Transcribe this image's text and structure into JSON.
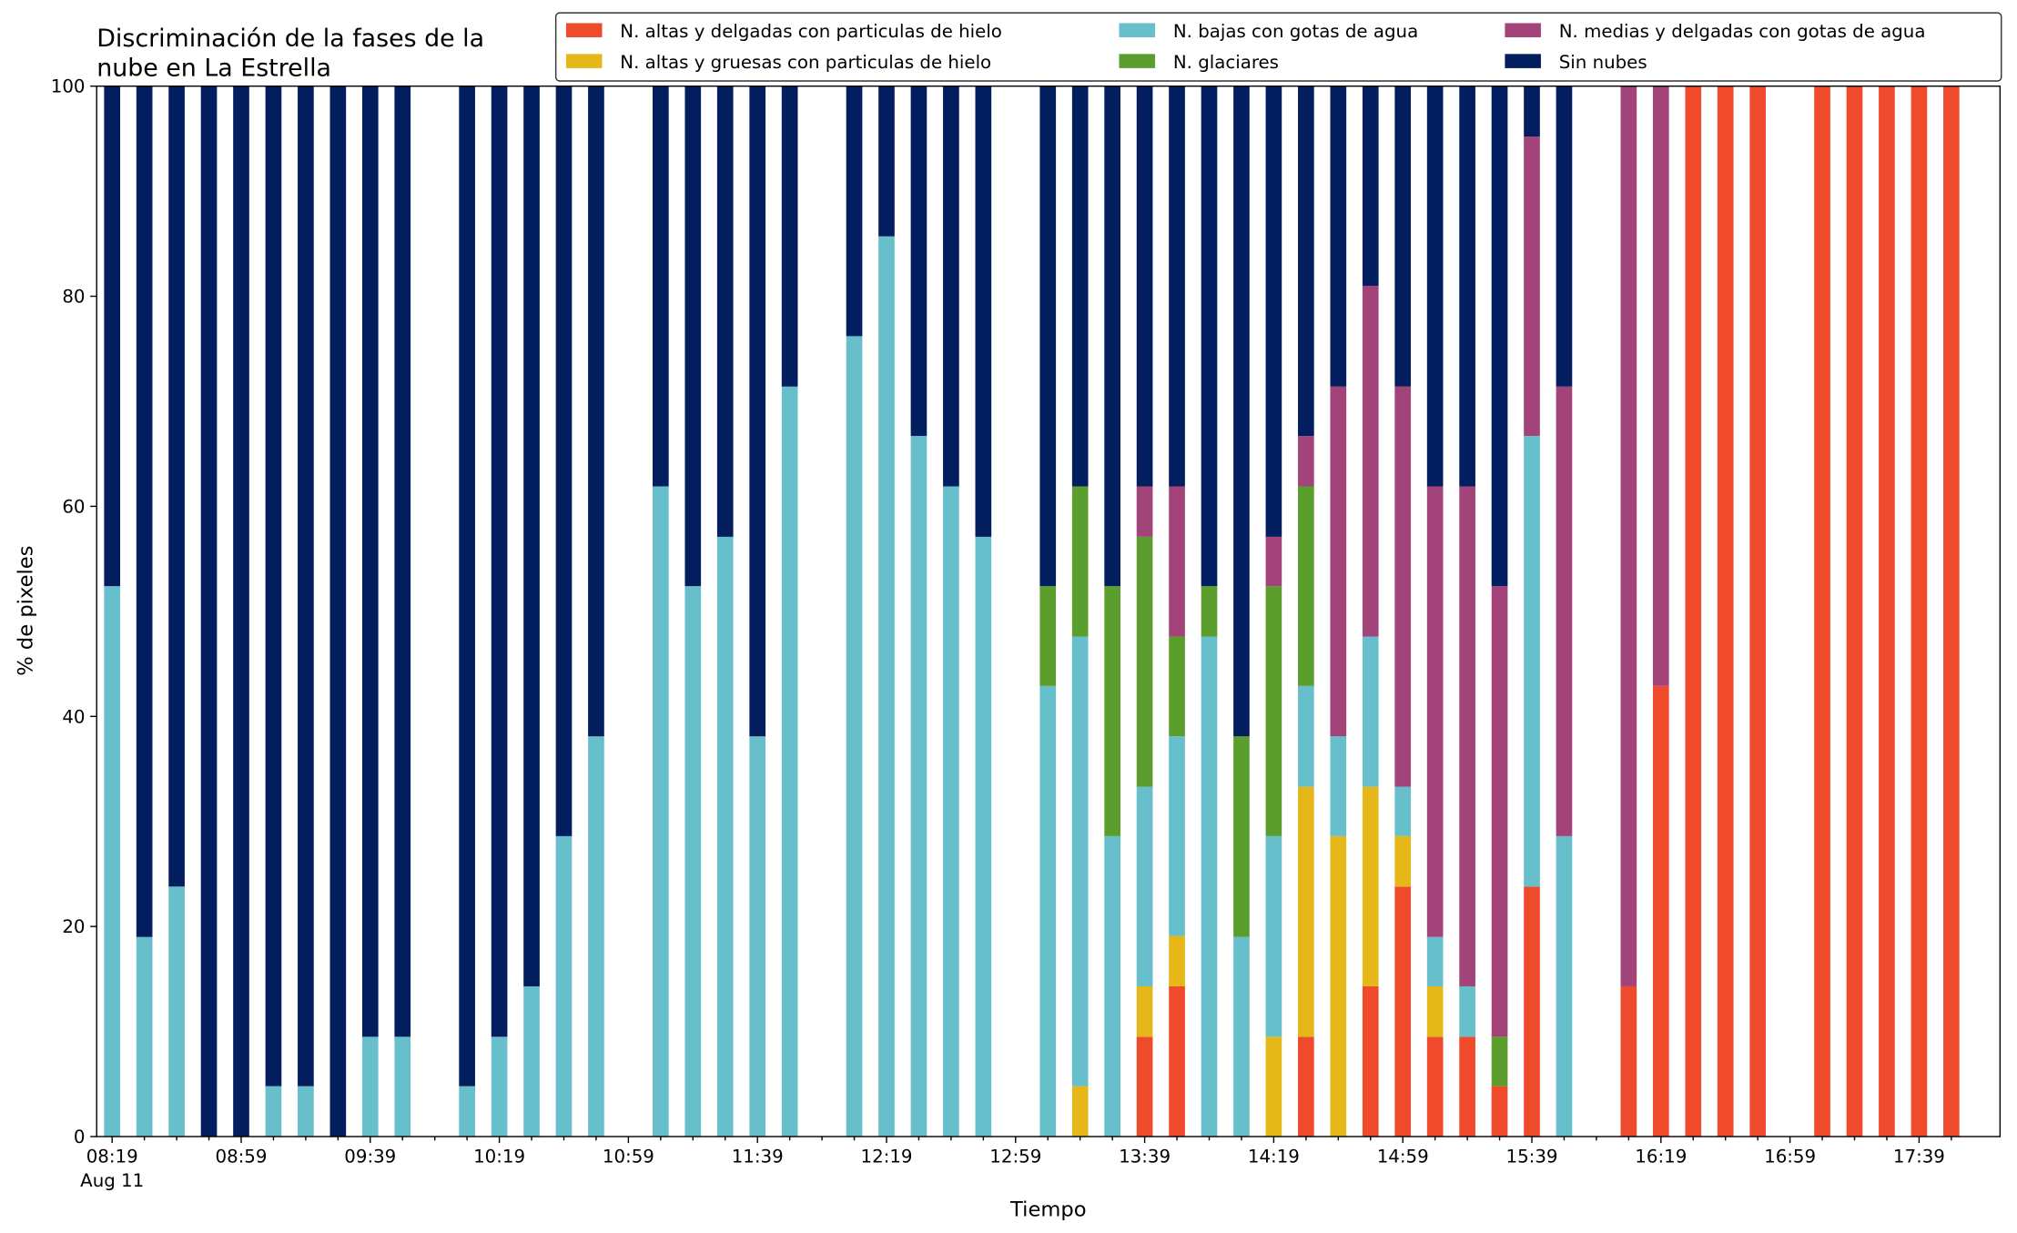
{
  "chart_data": {
    "type": "stacked_bar",
    "title": [
      "Discriminación de la fases de la",
      "nube en La Estrella"
    ],
    "xlabel": "Tiempo",
    "ylabel": "% de pixeles",
    "date_label": "Aug 11",
    "categories": [
      "08:19",
      null,
      null,
      null,
      "08:59",
      null,
      null,
      null,
      "09:39",
      null,
      null,
      null,
      "10:19",
      null,
      null,
      null,
      "10:59",
      null,
      null,
      null,
      "11:39",
      null,
      null,
      null,
      "12:19",
      null,
      null,
      null,
      "12:59",
      null,
      null,
      null,
      "13:39",
      null,
      null,
      null,
      "14:19",
      null,
      null,
      null,
      "14:59",
      null,
      null,
      null,
      "15:39",
      null,
      null,
      null,
      "16:19",
      null,
      null,
      null,
      "16:59",
      null,
      null,
      null,
      "17:39",
      null
    ],
    "ylim": [
      0,
      100
    ],
    "yticks": [
      0,
      20,
      40,
      60,
      80,
      100
    ],
    "series": [
      {
        "name": "N. altas y delgadas con particulas de hielo",
        "color": "#ef4a2c",
        "values": [
          0,
          0,
          0,
          0,
          0,
          0,
          0,
          0,
          0,
          0,
          null,
          0,
          0,
          0,
          0,
          0,
          null,
          0,
          0,
          0,
          0,
          0,
          null,
          0,
          0,
          0,
          0,
          0,
          null,
          0,
          0,
          0,
          9.5,
          14.3,
          0,
          0,
          0,
          9.5,
          0,
          14.3,
          23.8,
          9.5,
          9.5,
          4.8,
          23.8,
          0,
          null,
          14.3,
          42.9,
          100,
          100,
          100,
          null,
          100,
          100,
          100,
          100,
          100
        ]
      },
      {
        "name": "N. altas y gruesas con particulas de hielo",
        "color": "#e6b719",
        "values": [
          0,
          0,
          0,
          0,
          0,
          0,
          0,
          0,
          0,
          0,
          null,
          0,
          0,
          0,
          0,
          0,
          null,
          0,
          0,
          0,
          0,
          0,
          null,
          0,
          0,
          0,
          0,
          0,
          null,
          0,
          4.8,
          0,
          4.8,
          4.8,
          0,
          0,
          9.5,
          23.8,
          28.6,
          19,
          4.8,
          4.8,
          0,
          0,
          0,
          0,
          null,
          0,
          0,
          0,
          0,
          0,
          null,
          0,
          0,
          0,
          0,
          0
        ]
      },
      {
        "name": "N. bajas con gotas de agua",
        "color": "#67bfcb",
        "values": [
          52.4,
          19,
          23.8,
          0,
          0,
          4.8,
          4.8,
          0,
          9.5,
          9.5,
          null,
          4.8,
          9.5,
          14.3,
          28.6,
          38.1,
          null,
          61.9,
          52.4,
          57.1,
          38.1,
          71.4,
          null,
          76.2,
          85.7,
          66.7,
          61.9,
          57.1,
          null,
          42.9,
          42.8,
          28.6,
          19,
          19,
          47.6,
          19,
          19.1,
          9.6,
          9.5,
          14.3,
          4.7,
          4.7,
          4.8,
          0,
          42.9,
          28.6,
          null,
          0,
          0,
          0,
          0,
          0,
          null,
          0,
          0,
          0,
          0,
          0
        ]
      },
      {
        "name": "N. glaciares",
        "color": "#5b9e2d",
        "values": [
          0,
          0,
          0,
          0,
          0,
          0,
          0,
          0,
          0,
          0,
          null,
          0,
          0,
          0,
          0,
          0,
          null,
          0,
          0,
          0,
          0,
          0,
          null,
          0,
          0,
          0,
          0,
          0,
          null,
          9.5,
          14.3,
          23.8,
          23.8,
          9.5,
          4.8,
          19.1,
          23.8,
          19,
          0,
          0,
          0,
          0,
          0,
          4.7,
          0,
          0,
          null,
          0,
          0,
          0,
          0,
          0,
          null,
          0,
          0,
          0,
          0,
          0
        ]
      },
      {
        "name": "N. medias y delgadas con gotas de agua",
        "color": "#a2447a",
        "values": [
          0,
          0,
          0,
          0,
          0,
          0,
          0,
          0,
          0,
          0,
          null,
          0,
          0,
          0,
          0,
          0,
          null,
          0,
          0,
          0,
          0,
          0,
          null,
          0,
          0,
          0,
          0,
          0,
          null,
          0,
          0,
          0,
          4.8,
          14.3,
          0,
          0,
          4.7,
          4.8,
          33.3,
          33.4,
          38.1,
          42.9,
          47.6,
          42.9,
          28.5,
          42.8,
          null,
          85.7,
          57.1,
          0,
          0,
          0,
          null,
          0,
          0,
          0,
          0,
          0
        ]
      },
      {
        "name": "Sin nubes",
        "color": "#021e5e",
        "values": [
          47.6,
          81,
          76.2,
          100,
          100,
          95.2,
          95.2,
          100,
          90.5,
          90.5,
          null,
          95.2,
          90.5,
          85.7,
          71.4,
          61.9,
          null,
          38.1,
          47.6,
          42.9,
          61.9,
          28.6,
          null,
          23.8,
          14.3,
          33.3,
          38.1,
          42.9,
          null,
          47.6,
          38.1,
          47.6,
          38.1,
          38.1,
          47.6,
          61.9,
          42.9,
          33.3,
          28.6,
          19,
          28.6,
          38.1,
          38.1,
          47.6,
          4.8,
          28.6,
          null,
          0,
          0,
          0,
          0,
          0,
          null,
          0,
          0,
          0,
          0,
          0
        ]
      }
    ],
    "legend": "upper right"
  }
}
